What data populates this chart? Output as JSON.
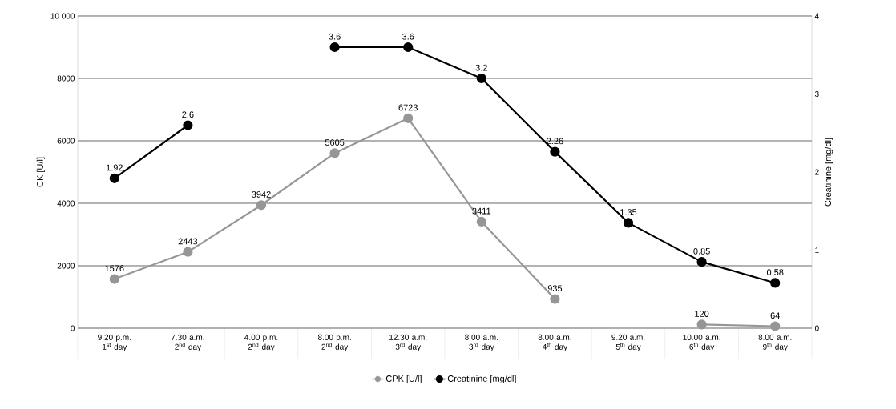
{
  "chart_data": {
    "type": "line",
    "categories": [
      "9.20 p.m. 1$^{st}$ day",
      "7.30 a.m. 2$^{nd}$ day",
      "4.00 p.m. 2$^{nd}$ day",
      "8.00 p.m. 2$^{nd}$ day",
      "12.30 a.m. 3$^{rd}$ day",
      "8.00 a.m. 3$^{rd}$ day",
      "8.00 a.m. 4$^{th}$ day",
      "9.20 a.m. 5$^{th}$ day",
      "10.00 a.m. 6$^{th}$ day",
      "8.00 a.m. 9$^{th}$ day"
    ],
    "series": [
      {
        "name": "CPK [U/l]",
        "color": "#969696",
        "values": [
          1576,
          2443,
          3942,
          5605,
          6723,
          3411,
          935,
          null,
          120,
          64
        ]
      },
      {
        "name": "Creatinine [mg/dl]",
        "color": "#000000",
        "axis": "y2",
        "values": [
          1.92,
          2.6,
          null,
          3.6,
          3.6,
          3.2,
          2.26,
          1.35,
          0.85,
          0.58
        ]
      }
    ],
    "ylabel": "CK [U/l]",
    "y2label": "Creatinine [mg/dl]",
    "ylim": [
      0,
      10000
    ],
    "yticks": [
      0,
      2000,
      4000,
      6000,
      8000,
      {
        "value": 10000,
        "label": "10 000"
      }
    ],
    "y2lim": [
      0,
      4
    ],
    "y2ticks": [
      0,
      1,
      2,
      3,
      4
    ],
    "grid": "y",
    "legend": "bottom",
    "marker": "circle",
    "data_labels": true
  }
}
